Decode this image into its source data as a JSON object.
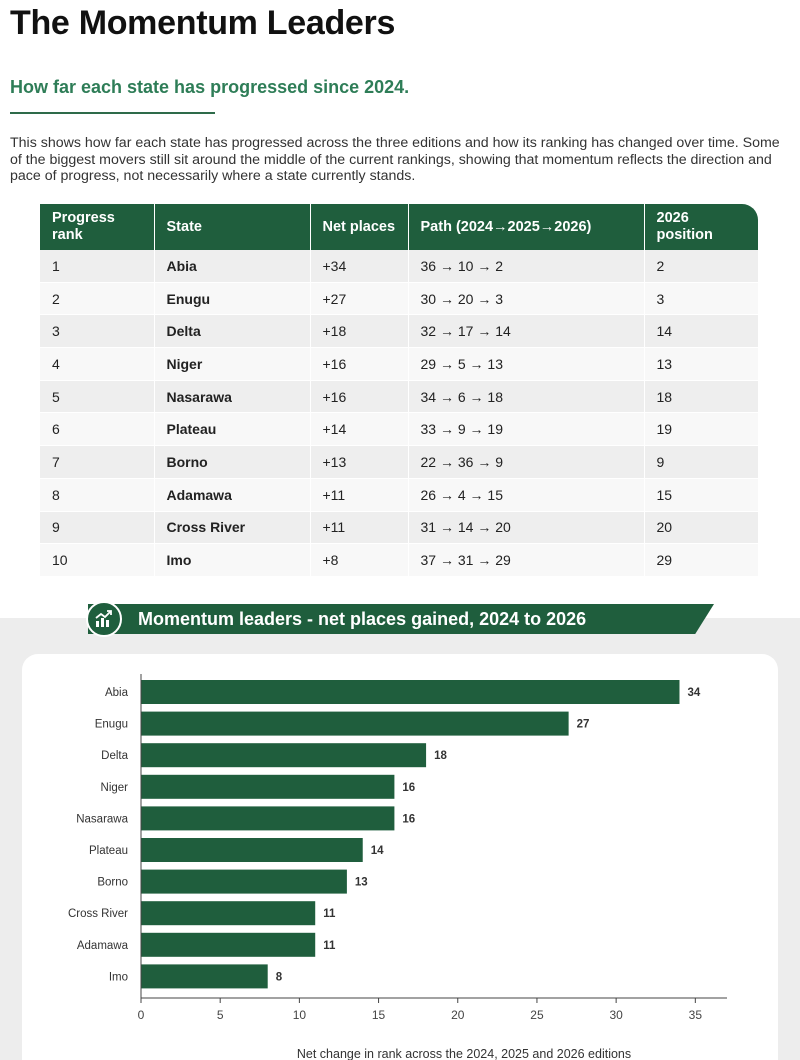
{
  "header": {
    "title": "The Momentum Leaders",
    "subtitle": "How far each state has progressed since 2024.",
    "intro": "This shows how far each state has progressed across the three editions and how its ranking has changed over time. Some of the biggest movers still sit around the middle of the current rankings, showing that momentum reflects the direction and pace of progress, not necessarily where a state currently stands."
  },
  "table": {
    "headers": {
      "rank": "Progress rank",
      "state": "State",
      "net": "Net places",
      "path": "Path (2024→2025→2026)",
      "position": "2026 position"
    },
    "rows": [
      {
        "rank": "1",
        "state": "Abia",
        "net": "+34",
        "path": "36 → 10 → 2",
        "position": "2"
      },
      {
        "rank": "2",
        "state": "Enugu",
        "net": "+27",
        "path": "30 → 20 → 3",
        "position": "3"
      },
      {
        "rank": "3",
        "state": "Delta",
        "net": "+18",
        "path": "32 → 17 → 14",
        "position": "14"
      },
      {
        "rank": "4",
        "state": "Niger",
        "net": "+16",
        "path": "29 → 5 → 13",
        "position": "13"
      },
      {
        "rank": "5",
        "state": "Nasarawa",
        "net": "+16",
        "path": "34 → 6 → 18",
        "position": "18"
      },
      {
        "rank": "6",
        "state": "Plateau",
        "net": "+14",
        "path": "33 → 9 → 19",
        "position": "19"
      },
      {
        "rank": "7",
        "state": "Borno",
        "net": "+13",
        "path": "22 → 36 → 9",
        "position": "9"
      },
      {
        "rank": "8",
        "state": "Adamawa",
        "net": "+11",
        "path": "26 → 4 → 15",
        "position": "15"
      },
      {
        "rank": "9",
        "state": "Cross River",
        "net": "+11",
        "path": "31 → 14 → 20",
        "position": "20"
      },
      {
        "rank": "10",
        "state": "Imo",
        "net": "+8",
        "path": "37 → 31 → 29",
        "position": "29"
      }
    ]
  },
  "chart_section": {
    "icon": "bar-chart-trend-icon"
  },
  "colors": {
    "primary_green": "#1f5e3d",
    "subtitle_green": "#2e7d57",
    "bar_green": "#1f5e3d"
  },
  "chart_data": {
    "type": "bar",
    "orientation": "horizontal",
    "title": "Momentum leaders - net places gained, 2024 to 2026",
    "categories": [
      "Abia",
      "Enugu",
      "Delta",
      "Niger",
      "Nasarawa",
      "Plateau",
      "Borno",
      "Cross River",
      "Adamawa",
      "Imo"
    ],
    "values": [
      34,
      27,
      18,
      16,
      16,
      14,
      13,
      11,
      11,
      8
    ],
    "xlabel": "Net change in rank across the 2024, 2025 and 2026 editions",
    "ylabel": "",
    "xlim": [
      0,
      37
    ],
    "xticks": [
      0,
      5,
      10,
      15,
      20,
      25,
      30,
      35
    ],
    "data_labels": true,
    "grid": false
  }
}
